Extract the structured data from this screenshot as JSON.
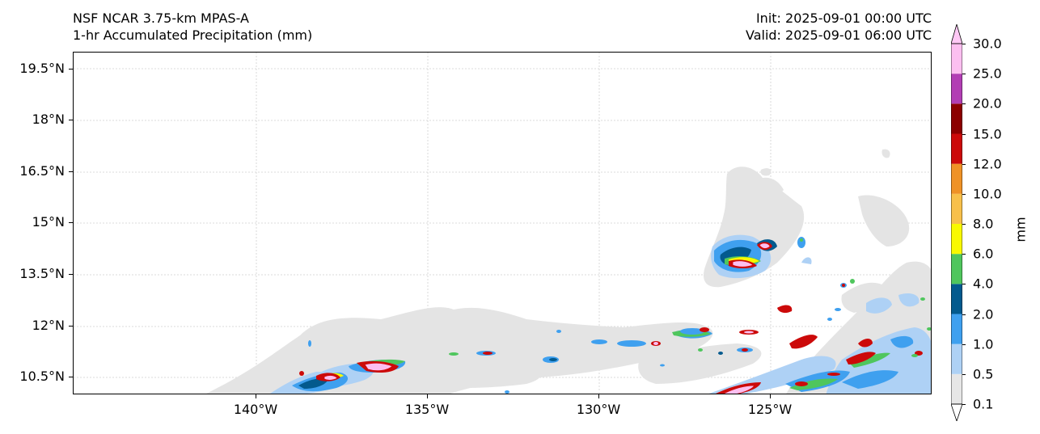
{
  "header": {
    "model": "NSF NCAR 3.75-km MPAS-A",
    "field": "1-hr Accumulated Precipitation (mm)",
    "init": "Init: 2025-09-01 00:00 UTC",
    "valid": "Valid: 2025-09-01 06:00 UTC"
  },
  "map": {
    "lat_ticks": [
      "19.5°N",
      "18°N",
      "16.5°N",
      "15°N",
      "13.5°N",
      "12°N",
      "10.5°N"
    ],
    "lon_ticks": [
      "140°W",
      "135°W",
      "130°W",
      "125°W"
    ]
  },
  "colorbar": {
    "unit": "mm",
    "levels": [
      "0.1",
      "0.5",
      "1.0",
      "2.0",
      "4.0",
      "6.0",
      "8.0",
      "10.0",
      "12.0",
      "15.0",
      "20.0",
      "25.0",
      "30.0"
    ],
    "colors": [
      "#e6e6e6",
      "#aed1f5",
      "#3fa0ef",
      "#035a8e",
      "#4fc65d",
      "#f9f900",
      "#f8c04a",
      "#ef9226",
      "#cc0a0a",
      "#8c0000",
      "#b23eb4",
      "#fcbff0"
    ]
  }
}
